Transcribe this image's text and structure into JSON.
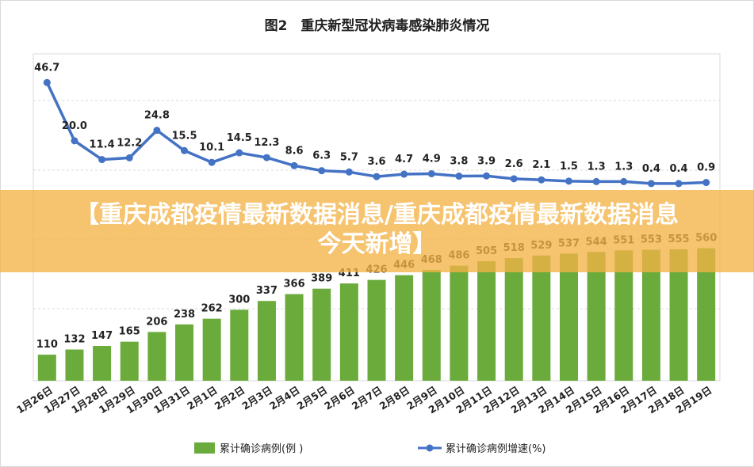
{
  "chart_data": {
    "type": "bar+line",
    "title": "图2　重庆新型冠状病毒感染肺炎情况",
    "categories": [
      "1月26日",
      "1月27日",
      "1月28日",
      "1月29日",
      "1月30日",
      "1月31日",
      "2月1日",
      "2月2日",
      "2月3日",
      "2月4日",
      "2月5日",
      "2月6日",
      "2月7日",
      "2月8日",
      "2月9日",
      "2月10日",
      "2月11日",
      "2月12日",
      "2月13日",
      "2月14日",
      "2月15日",
      "2月16日",
      "2月17日",
      "2月18日",
      "2月19日"
    ],
    "series": [
      {
        "name": "累计确诊病例(例 )",
        "type": "bar",
        "color": "#6aab3c",
        "values": [
          110,
          132,
          147,
          165,
          206,
          238,
          262,
          300,
          337,
          366,
          389,
          411,
          426,
          446,
          468,
          486,
          505,
          518,
          529,
          537,
          544,
          551,
          553,
          555,
          560
        ]
      },
      {
        "name": "累计确诊病例增速(%)",
        "type": "line",
        "color": "#4472c4",
        "values": [
          46.7,
          20.0,
          11.4,
          12.2,
          24.8,
          15.5,
          10.1,
          14.5,
          12.3,
          8.6,
          6.3,
          5.7,
          3.6,
          4.7,
          4.9,
          3.8,
          3.9,
          2.6,
          2.1,
          1.5,
          1.3,
          1.3,
          0.4,
          0.4,
          0.9
        ]
      }
    ],
    "bar_labels": [
      "110",
      "132",
      "147",
      "165",
      "206",
      "238",
      "262",
      "300",
      "337",
      "366",
      "389",
      "411",
      "426",
      "446",
      "468",
      "486",
      "505",
      "518",
      "529",
      "537",
      "544",
      "551",
      "553",
      "555",
      "560"
    ],
    "line_labels": [
      "46.7",
      "20.0",
      "11.4",
      "12.2",
      "24.8",
      "15.5",
      "10.1",
      "14.5",
      "12.3",
      "8.6",
      "6.3",
      "5.7",
      "3.6",
      "4.7",
      "4.9",
      "3.8",
      "3.9",
      "2.6",
      "2.1",
      "1.5",
      "1.3",
      "1.3",
      "0.4",
      "0.4",
      "0.9"
    ],
    "grid": true,
    "legend": "bottom"
  },
  "banner": {
    "line1": "【重庆成都疫情最新数据消息/重庆成都疫情最新数据消息",
    "line2": "今天新增】"
  }
}
